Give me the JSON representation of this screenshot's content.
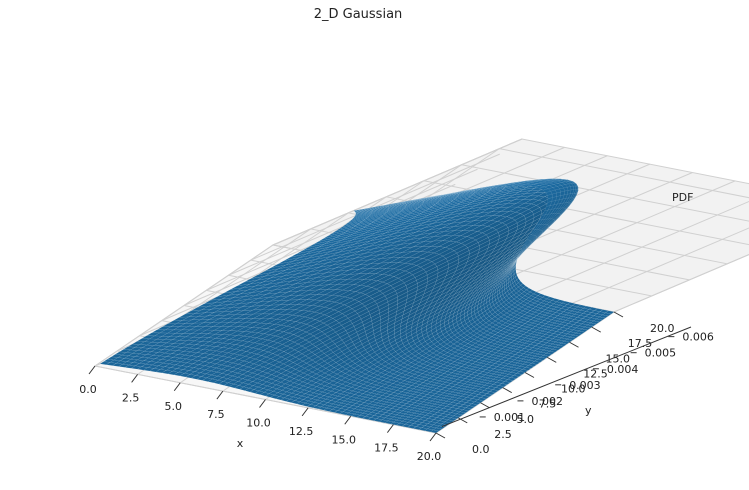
{
  "chart_data": {
    "type": "surface3d",
    "title": "2_D Gaussian",
    "xlabel": "x",
    "ylabel": "y",
    "zlabel": "PDF",
    "xlim": [
      0,
      20
    ],
    "ylim": [
      0,
      20
    ],
    "zlim": [
      0,
      0.0066
    ],
    "x_ticks": [
      "0.0",
      "2.5",
      "5.0",
      "7.5",
      "10.0",
      "12.5",
      "15.0",
      "17.5",
      "20.0"
    ],
    "y_ticks": [
      "0.0",
      "2.5",
      "5.0",
      "7.5",
      "10.0",
      "12.5",
      "15.0",
      "17.5",
      "20.0"
    ],
    "z_ticks": [
      "0.001",
      "0.002",
      "0.003",
      "0.004",
      "0.005",
      "0.006"
    ],
    "x_tick_values": [
      0,
      2.5,
      5,
      7.5,
      10,
      12.5,
      15,
      17.5,
      20
    ],
    "y_tick_values": [
      0,
      2.5,
      5,
      7.5,
      10,
      12.5,
      15,
      17.5,
      20
    ],
    "z_tick_values": [
      0.001,
      0.002,
      0.003,
      0.004,
      0.005,
      0.006
    ],
    "surface": {
      "function": "bivariate normal pdf",
      "mean": [
        5,
        15
      ],
      "std": [
        4,
        6
      ],
      "peak_value": 0.0066,
      "grid": [
        0,
        20,
        60
      ]
    },
    "grid": true,
    "colors": {
      "surface": "#1f77b4",
      "pane": "#f2f2f2",
      "gridline": "#d0d0d0"
    }
  }
}
